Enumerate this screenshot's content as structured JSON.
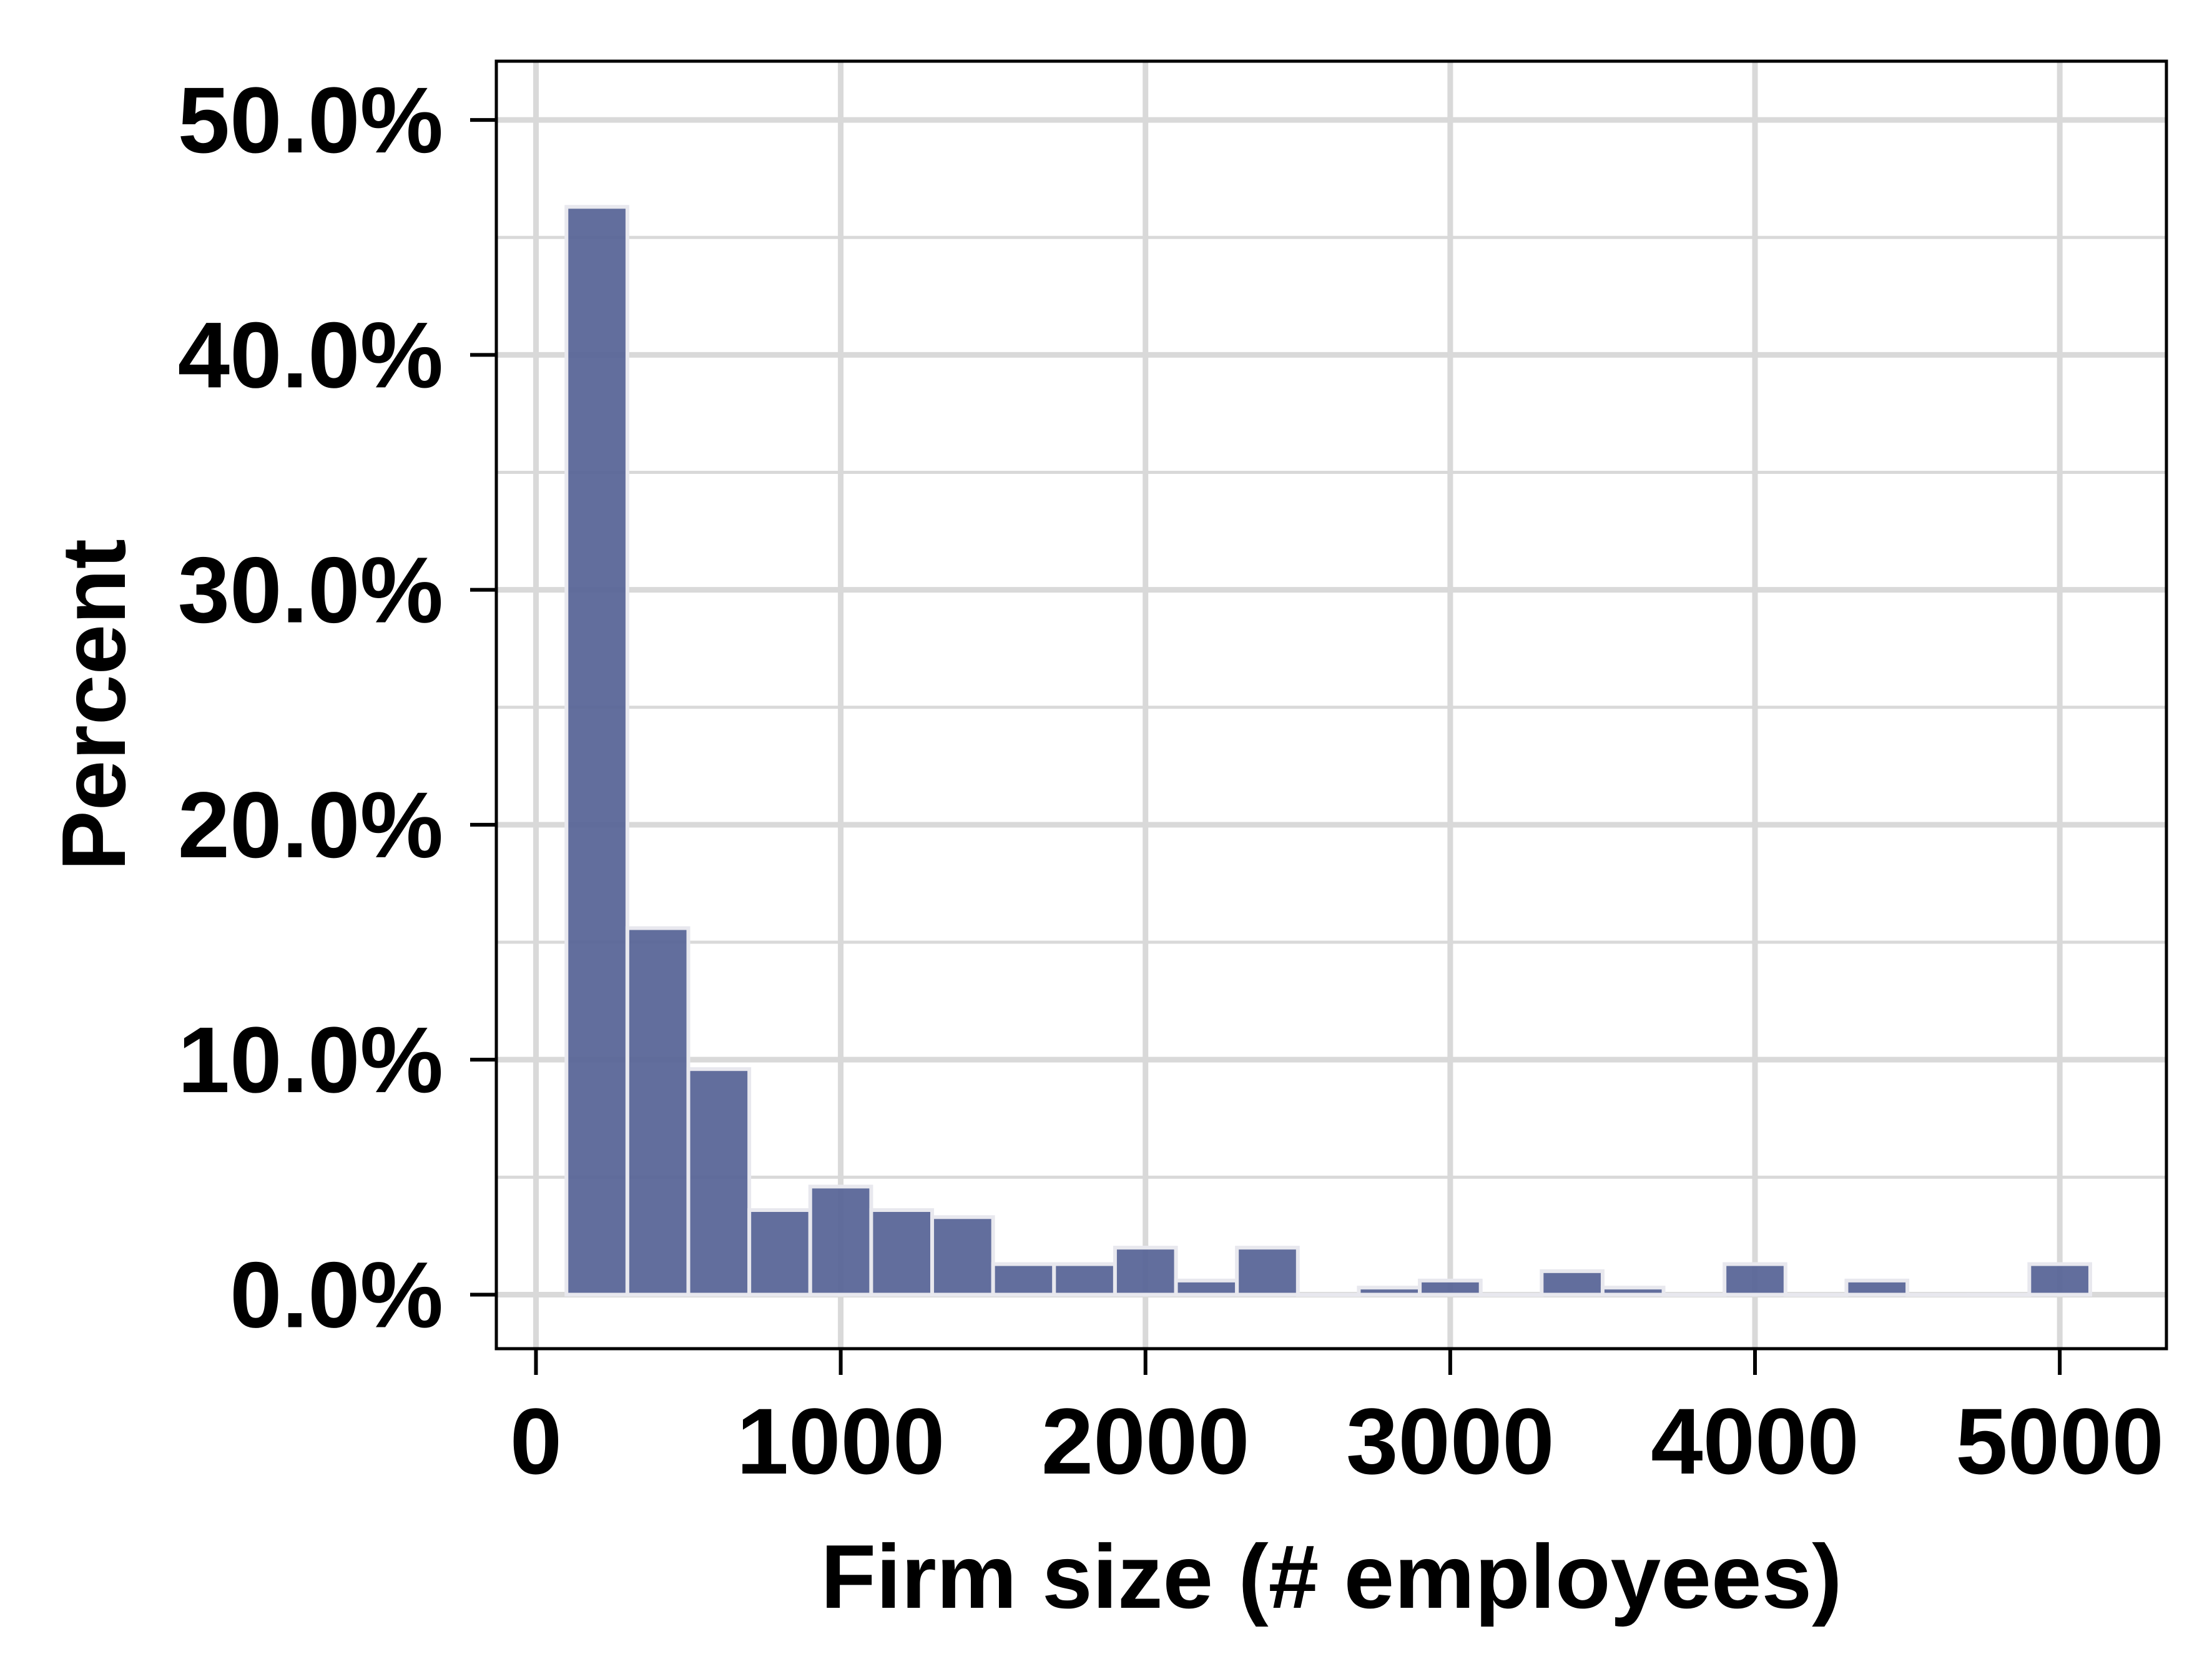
{
  "chart_data": {
    "type": "bar",
    "subtype": "histogram",
    "title": "",
    "xlabel": "Firm size (# employees)",
    "ylabel": "Percent",
    "xlim": [
      -130,
      5350
    ],
    "ylim": [
      -2.3,
      52.5
    ],
    "xticks": [
      0,
      1000,
      2000,
      3000,
      4000,
      5000
    ],
    "xtick_labels": [
      "0",
      "1000",
      "2000",
      "3000",
      "4000",
      "5000"
    ],
    "yticks": [
      0,
      10,
      20,
      30,
      40,
      50
    ],
    "ytick_labels": [
      "0.0%",
      "10.0%",
      "20.0%",
      "30.0%",
      "40.0%",
      "50.0%"
    ],
    "minor_yticks": [
      5,
      15,
      25,
      35,
      45
    ],
    "grid": true,
    "bin_width": 200,
    "bins": [
      {
        "x0": 100,
        "x1": 300,
        "value": 46.3
      },
      {
        "x0": 300,
        "x1": 500,
        "value": 15.6
      },
      {
        "x0": 500,
        "x1": 700,
        "value": 9.6
      },
      {
        "x0": 700,
        "x1": 900,
        "value": 3.6
      },
      {
        "x0": 900,
        "x1": 1100,
        "value": 4.6
      },
      {
        "x0": 1100,
        "x1": 1300,
        "value": 3.6
      },
      {
        "x0": 1300,
        "x1": 1500,
        "value": 3.3
      },
      {
        "x0": 1500,
        "x1": 1700,
        "value": 1.3
      },
      {
        "x0": 1700,
        "x1": 1900,
        "value": 1.3
      },
      {
        "x0": 1900,
        "x1": 2100,
        "value": 2.0
      },
      {
        "x0": 2100,
        "x1": 2300,
        "value": 0.6
      },
      {
        "x0": 2300,
        "x1": 2500,
        "value": 2.0
      },
      {
        "x0": 2500,
        "x1": 2700,
        "value": 0.0
      },
      {
        "x0": 2700,
        "x1": 2900,
        "value": 0.3
      },
      {
        "x0": 2900,
        "x1": 3100,
        "value": 0.6
      },
      {
        "x0": 3100,
        "x1": 3300,
        "value": 0.0
      },
      {
        "x0": 3300,
        "x1": 3500,
        "value": 1.0
      },
      {
        "x0": 3500,
        "x1": 3700,
        "value": 0.3
      },
      {
        "x0": 3700,
        "x1": 3900,
        "value": 0.0
      },
      {
        "x0": 3900,
        "x1": 4100,
        "value": 1.3
      },
      {
        "x0": 4100,
        "x1": 4300,
        "value": 0.0
      },
      {
        "x0": 4300,
        "x1": 4500,
        "value": 0.6
      },
      {
        "x0": 4500,
        "x1": 4700,
        "value": 0.0
      },
      {
        "x0": 4700,
        "x1": 4900,
        "value": 0.0
      },
      {
        "x0": 4900,
        "x1": 5100,
        "value": 1.3
      }
    ],
    "colors": {
      "bar_fill": "#5a6698",
      "bar_edge": "#e8e8ee",
      "grid": "#d9d9d9",
      "axis": "#000000"
    }
  }
}
